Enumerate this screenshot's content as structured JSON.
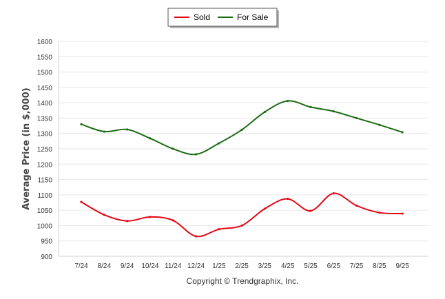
{
  "chart_data": {
    "type": "line",
    "title": "",
    "xlabel": "",
    "ylabel": "Average Price (in $,000)",
    "credit": "Copyright © Trendgraphix, Inc.",
    "categories": [
      "7/24",
      "8/24",
      "9/24",
      "10/24",
      "11/24",
      "12/24",
      "1/25",
      "2/25",
      "3/25",
      "4/25",
      "5/25",
      "6/25",
      "7/25",
      "8/25",
      "9/25"
    ],
    "ylim": [
      900,
      1600
    ],
    "yticks": [
      900,
      950,
      1000,
      1050,
      1100,
      1150,
      1200,
      1250,
      1300,
      1350,
      1400,
      1450,
      1500,
      1550,
      1600
    ],
    "grid": true,
    "legend_position": "top-center",
    "series": [
      {
        "name": "Sold",
        "color": "#e30613",
        "values": [
          1077,
          1035,
          1015,
          1028,
          1017,
          965,
          988,
          1000,
          1055,
          1087,
          1048,
          1105,
          1065,
          1042,
          1039
        ]
      },
      {
        "name": "For Sale",
        "color": "#1b6b13",
        "values": [
          1330,
          1306,
          1313,
          1284,
          1250,
          1232,
          1268,
          1312,
          1370,
          1406,
          1386,
          1372,
          1350,
          1328,
          1304
        ]
      }
    ]
  }
}
